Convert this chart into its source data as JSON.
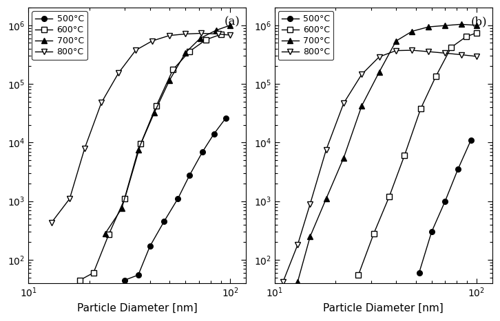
{
  "panel_a": {
    "label": "(a)",
    "series": {
      "500": {
        "marker": "o",
        "fillstyle": "full",
        "x": [
          30,
          35,
          40,
          47,
          55,
          63,
          73,
          83,
          95
        ],
        "y": [
          45,
          55,
          170,
          450,
          1100,
          2800,
          7000,
          14000,
          26000
        ]
      },
      "600": {
        "marker": "s",
        "fillstyle": "none",
        "x": [
          18,
          21,
          25,
          30,
          36,
          43,
          52,
          63,
          76,
          90
        ],
        "y": [
          45,
          60,
          270,
          1100,
          9500,
          42000,
          175000,
          360000,
          570000,
          700000
        ]
      },
      "700": {
        "marker": "^",
        "fillstyle": "full",
        "x": [
          24,
          29,
          35,
          42,
          50,
          60,
          71,
          85,
          100
        ],
        "y": [
          280,
          750,
          7500,
          32000,
          115000,
          340000,
          600000,
          820000,
          1000000
        ]
      },
      "800": {
        "marker": "v",
        "fillstyle": "none",
        "x": [
          13,
          16,
          19,
          23,
          28,
          34,
          41,
          50,
          60,
          72,
          87,
          100
        ],
        "y": [
          430,
          1100,
          8000,
          48000,
          155000,
          375000,
          540000,
          670000,
          710000,
          730000,
          710000,
          680000
        ]
      }
    }
  },
  "panel_b": {
    "label": "(b)",
    "series": {
      "500": {
        "marker": "o",
        "fillstyle": "full",
        "x": [
          52,
          60,
          70,
          81,
          94
        ],
        "y": [
          60,
          300,
          1000,
          3500,
          11000
        ]
      },
      "600": {
        "marker": "s",
        "fillstyle": "none",
        "x": [
          26,
          31,
          37,
          44,
          53,
          63,
          75,
          89,
          100
        ],
        "y": [
          55,
          280,
          1200,
          6000,
          38000,
          135000,
          420000,
          640000,
          740000
        ]
      },
      "700": {
        "marker": "^",
        "fillstyle": "full",
        "x": [
          13,
          15,
          18,
          22,
          27,
          33,
          40,
          48,
          58,
          70,
          84,
          100
        ],
        "y": [
          42,
          250,
          1100,
          5500,
          42000,
          160000,
          540000,
          790000,
          940000,
          990000,
          1040000,
          1000000
        ]
      },
      "800": {
        "marker": "v",
        "fillstyle": "none",
        "x": [
          11,
          13,
          15,
          18,
          22,
          27,
          33,
          40,
          48,
          58,
          70,
          84,
          100
        ],
        "y": [
          42,
          180,
          900,
          7500,
          47000,
          145000,
          290000,
          370000,
          375000,
          355000,
          335000,
          315000,
          295000
        ]
      }
    }
  },
  "xlabel": "Particle Diameter [nm]",
  "xlim": [
    10,
    120
  ],
  "ylim": [
    40,
    2000000.0
  ],
  "legend_labels": [
    "500°C",
    "600°C",
    "700°C",
    "800°C"
  ],
  "background_color": "#ffffff"
}
